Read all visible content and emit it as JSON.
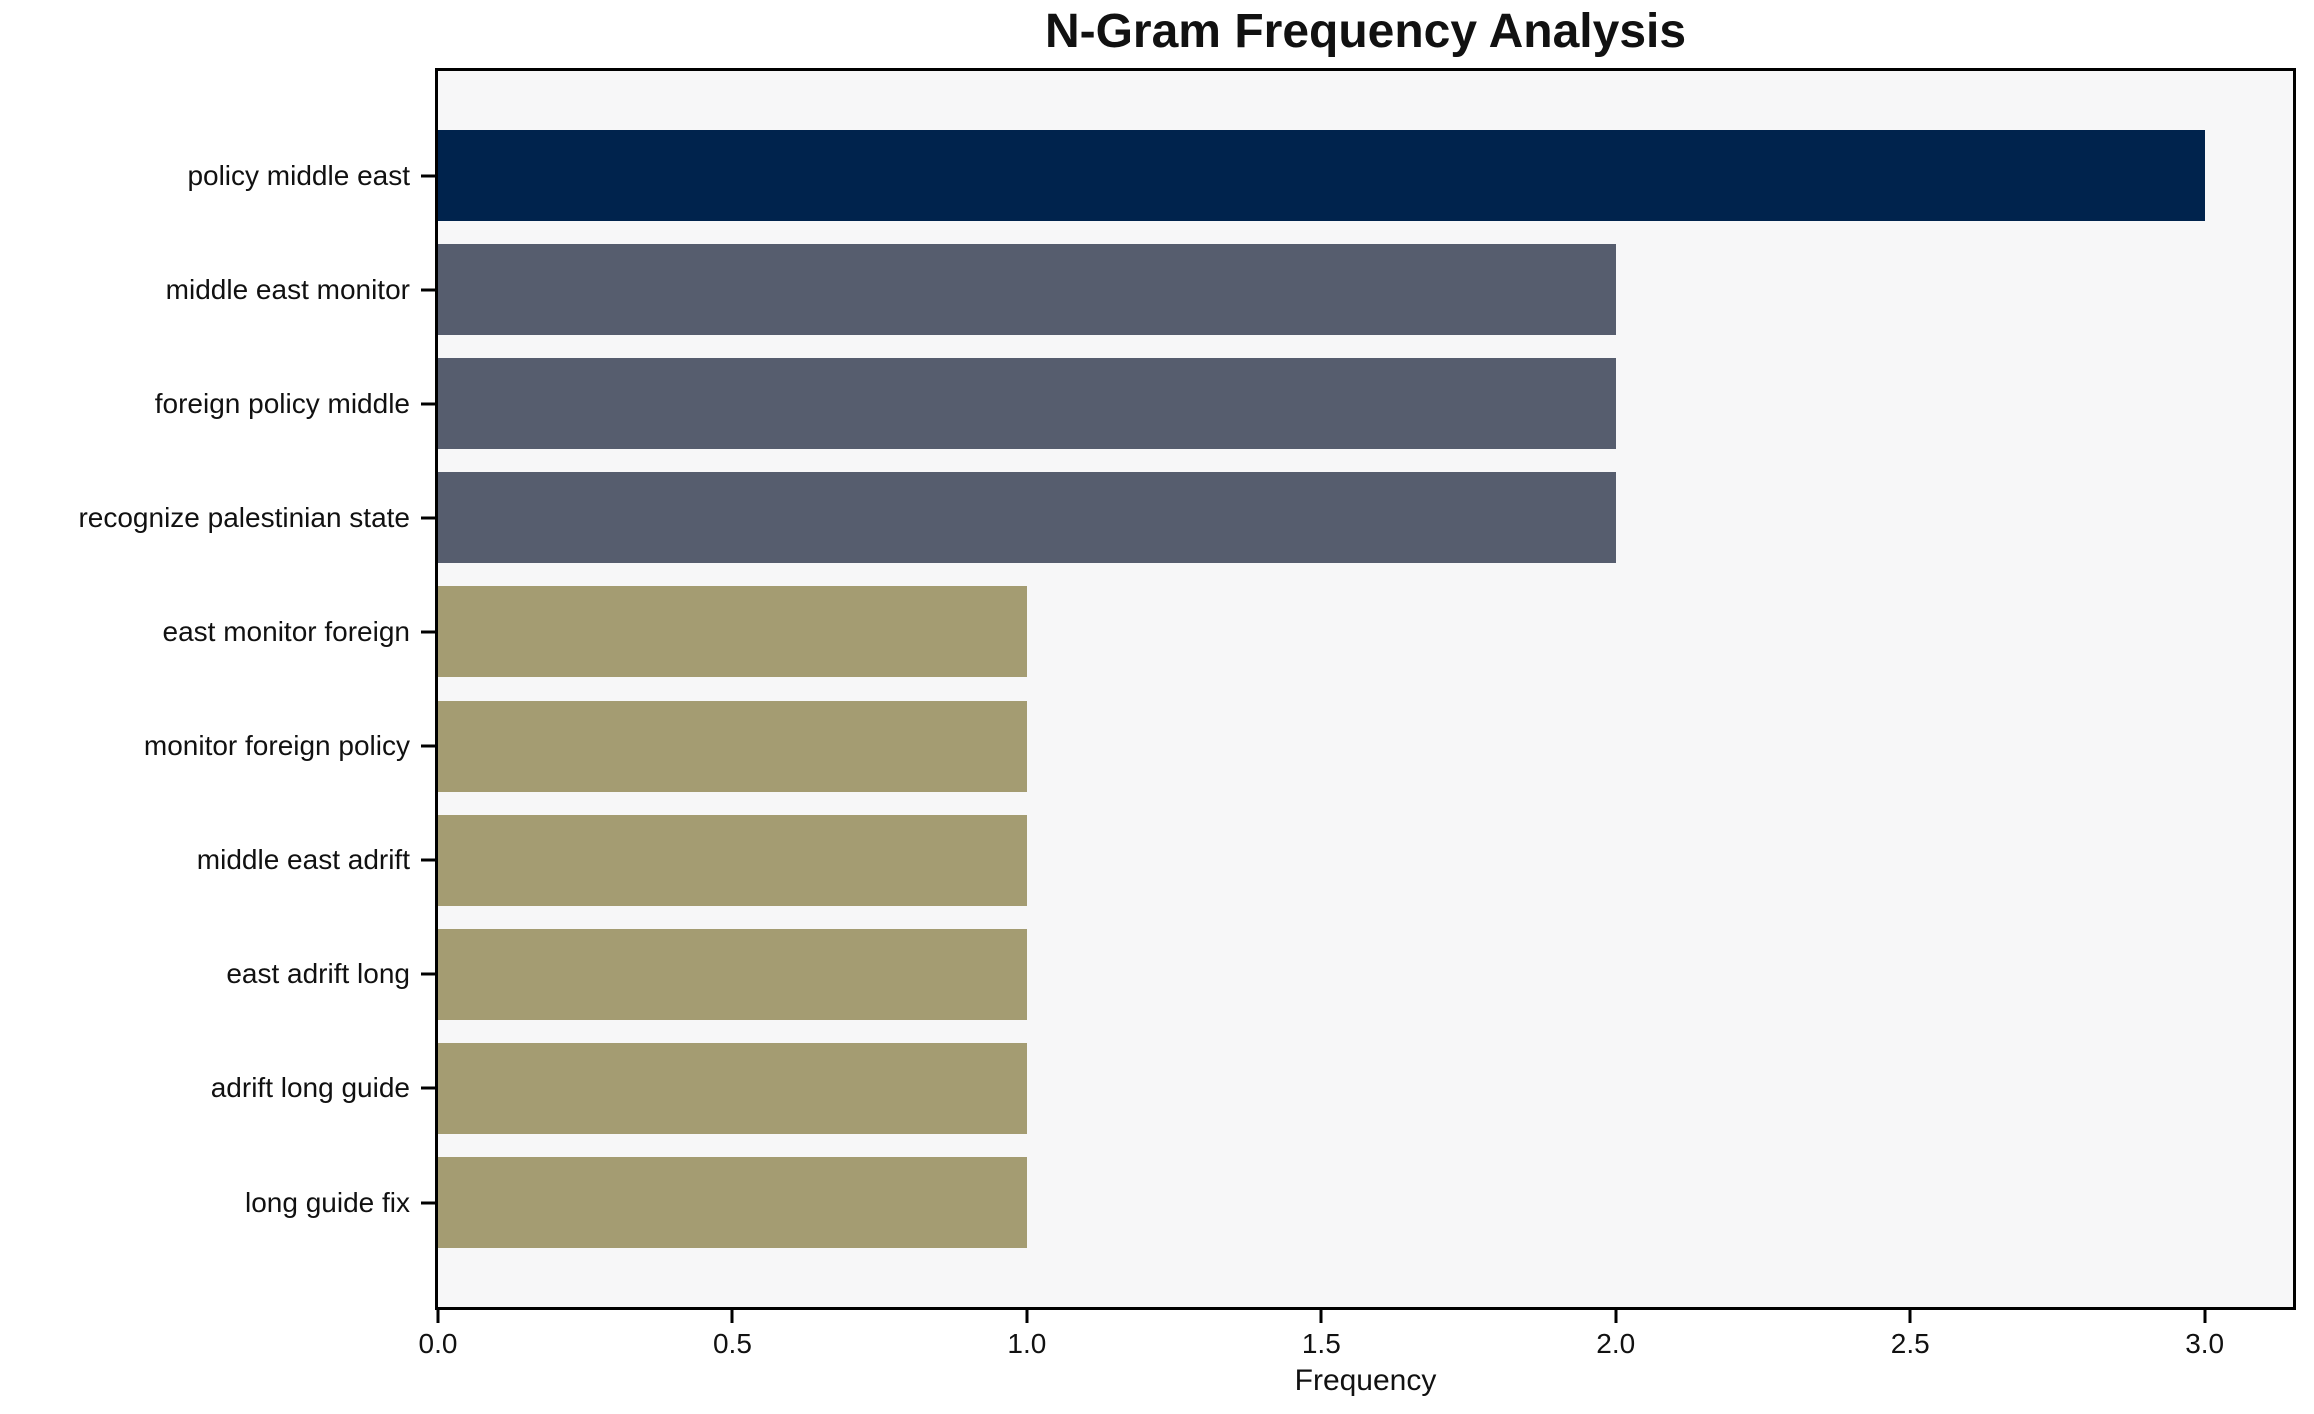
{
  "chart_data": {
    "type": "bar",
    "orientation": "horizontal",
    "title": "N-Gram Frequency Analysis",
    "xlabel": "Frequency",
    "ylabel": "",
    "categories": [
      "policy middle east",
      "middle east monitor",
      "foreign policy middle",
      "recognize palestinian state",
      "east monitor foreign",
      "monitor foreign policy",
      "middle east adrift",
      "east adrift long",
      "adrift long guide",
      "long guide fix"
    ],
    "values": [
      3,
      2,
      2,
      2,
      1,
      1,
      1,
      1,
      1,
      1
    ],
    "bar_colors": [
      "#00234D",
      "#565D6E",
      "#565D6E",
      "#565D6E",
      "#A49C72",
      "#A49C72",
      "#A49C72",
      "#A49C72",
      "#A49C72",
      "#A49C72"
    ],
    "xlim": [
      0,
      3.15
    ],
    "x_ticks": [
      0.0,
      0.5,
      1.0,
      1.5,
      2.0,
      2.5,
      3.0
    ],
    "x_tick_labels": [
      "0.0",
      "0.5",
      "1.0",
      "1.5",
      "2.0",
      "2.5",
      "3.0"
    ],
    "grid": false,
    "legend": null,
    "colors": {
      "plot_background": "#F7F7F8",
      "figure_background": "#FFFFFF",
      "frame": "#000000",
      "text": "#111111"
    }
  }
}
